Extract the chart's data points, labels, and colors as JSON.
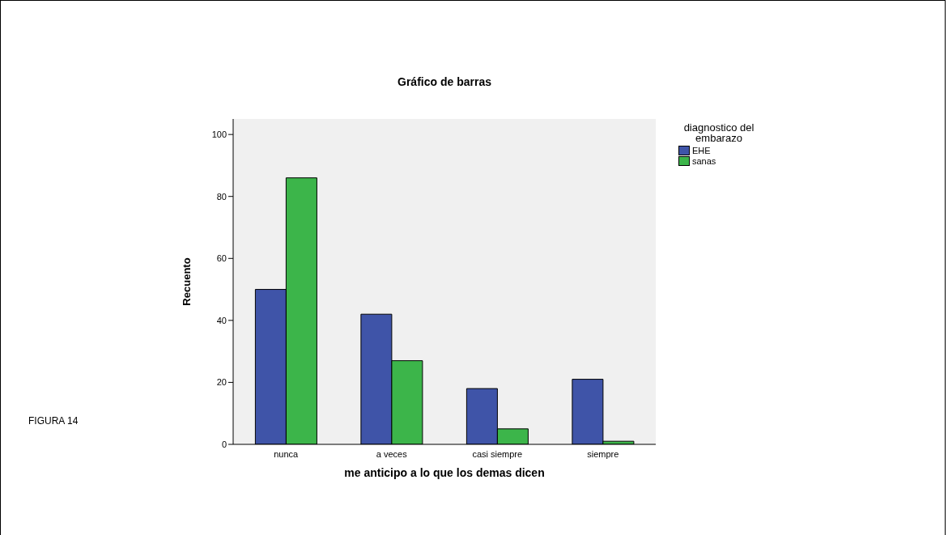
{
  "chart_data": {
    "type": "bar",
    "title": "Gráfico de barras",
    "xlabel": "me anticipo a lo que los demas dicen",
    "ylabel": "Recuento",
    "legend_title": "diagnostico del embarazo",
    "annotations": [
      "FIGURA 14"
    ],
    "categories": [
      "nunca",
      "a veces",
      "casi siempre",
      "siempre"
    ],
    "series": [
      {
        "name": "EHE",
        "color": "#3f54a8",
        "values": [
          50,
          42,
          18,
          21
        ]
      },
      {
        "name": "sanas",
        "color": "#3cb54a",
        "values": [
          86,
          27,
          5,
          1
        ]
      }
    ],
    "ylim": [
      0,
      105
    ],
    "yticks": [
      0,
      20,
      40,
      60,
      80,
      100
    ],
    "grid": false,
    "legend": "top right"
  }
}
